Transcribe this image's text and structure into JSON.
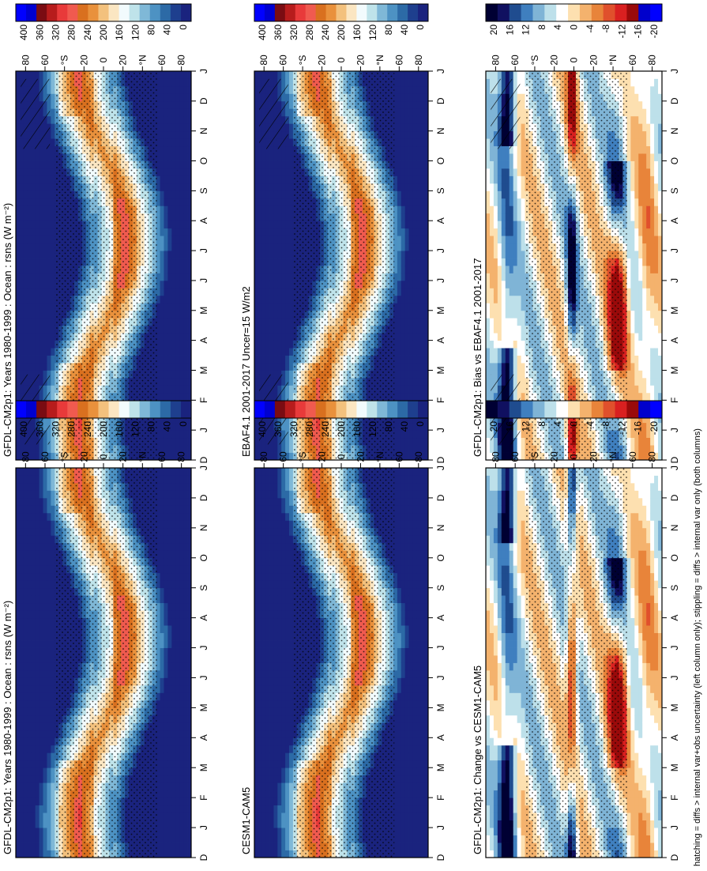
{
  "figure": {
    "footnote": "hatching = diffs > internal var+obs uncertainty (left column only); stippling = diffs > internal var only (both columns)"
  },
  "chart_data": [
    {
      "type": "heatmap",
      "id": "p1",
      "title": "GFDL-CM2p1: Years 1980-1999 : Ocean : rsns (W m⁻²)",
      "months": [
        "D",
        "J",
        "F",
        "M",
        "A",
        "M",
        "J",
        "J",
        "A",
        "S",
        "O",
        "N",
        "D",
        "J"
      ],
      "lat_ticks": [
        "80",
        "60",
        "°N",
        "20",
        "0",
        "20",
        "°S",
        "60",
        "80"
      ],
      "colorbar": {
        "labels": [
          "400",
          "360",
          "320",
          "280",
          "240",
          "200",
          "160",
          "120",
          "80",
          "40",
          "0"
        ],
        "range": [
          0,
          400
        ],
        "scheme": "absolute"
      },
      "annotations": [
        "stippling",
        "hatching"
      ]
    },
    {
      "type": "heatmap",
      "id": "p2",
      "title": "GFDL-CM2p1: Years 1980-1999 : Ocean : rsns (W m⁻²)",
      "months": [
        "D",
        "J",
        "F",
        "M",
        "A",
        "M",
        "J",
        "J",
        "A",
        "S",
        "O",
        "N",
        "D",
        "J"
      ],
      "lat_ticks": [
        "80",
        "60",
        "°N",
        "20",
        "0",
        "20",
        "°S",
        "60",
        "80"
      ],
      "colorbar": {
        "labels": [
          "400",
          "360",
          "320",
          "280",
          "240",
          "200",
          "160",
          "120",
          "80",
          "40",
          "0"
        ],
        "range": [
          0,
          400
        ],
        "scheme": "absolute"
      },
      "annotations": [
        "stippling"
      ]
    },
    {
      "type": "heatmap",
      "id": "p3",
      "title": "EBAF4.1 2001-2017 Uncer=15 W/m2",
      "months": [
        "D",
        "J",
        "F",
        "M",
        "A",
        "M",
        "J",
        "J",
        "A",
        "S",
        "O",
        "N",
        "D",
        "J"
      ],
      "lat_ticks": [
        "80",
        "60",
        "°N",
        "20",
        "0",
        "20",
        "°S",
        "60",
        "80"
      ],
      "colorbar": {
        "labels": [
          "400",
          "360",
          "320",
          "280",
          "240",
          "200",
          "160",
          "120",
          "80",
          "40",
          "0"
        ],
        "range": [
          0,
          400
        ],
        "scheme": "absolute"
      },
      "annotations": [
        "stippling",
        "hatching"
      ]
    },
    {
      "type": "heatmap",
      "id": "p4",
      "title": "CESM1-CAM5",
      "months": [
        "D",
        "J",
        "F",
        "M",
        "A",
        "M",
        "J",
        "J",
        "A",
        "S",
        "O",
        "N",
        "D",
        "J"
      ],
      "lat_ticks": [
        "80",
        "60",
        "°N",
        "20",
        "0",
        "20",
        "°S",
        "60",
        "80"
      ],
      "colorbar": {
        "labels": [
          "400",
          "360",
          "320",
          "280",
          "240",
          "200",
          "160",
          "120",
          "80",
          "40",
          "0"
        ],
        "range": [
          0,
          400
        ],
        "scheme": "absolute"
      },
      "annotations": [
        "stippling"
      ]
    },
    {
      "type": "heatmap",
      "id": "p5",
      "title": "GFDL-CM2p1: Bias vs EBAF4.1 2001-2017",
      "months": [
        "D",
        "J",
        "F",
        "M",
        "A",
        "M",
        "J",
        "J",
        "A",
        "S",
        "O",
        "N",
        "D",
        "J"
      ],
      "lat_ticks": [
        "80",
        "60",
        "°N",
        "20",
        "0",
        "20",
        "°S",
        "60",
        "80"
      ],
      "colorbar": {
        "labels": [
          "20",
          "16",
          "12",
          "8",
          "4",
          "0",
          "-4",
          "-8",
          "-12",
          "-16",
          "-20"
        ],
        "range": [
          -20,
          20
        ],
        "scheme": "difference"
      },
      "annotations": [
        "stippling",
        "hatching"
      ]
    },
    {
      "type": "heatmap",
      "id": "p6",
      "title": "GFDL-CM2p1: Change vs CESM1-CAM5",
      "months": [
        "D",
        "J",
        "F",
        "M",
        "A",
        "M",
        "J",
        "J",
        "A",
        "S",
        "O",
        "N",
        "D",
        "J"
      ],
      "lat_ticks": [
        "80",
        "60",
        "°N",
        "20",
        "0",
        "20",
        "°S",
        "60",
        "80"
      ],
      "colorbar": {
        "labels": [
          "20",
          "16",
          "12",
          "8",
          "4",
          "0",
          "-4",
          "-8",
          "-12",
          "-16",
          "-20"
        ],
        "range": [
          -20,
          20
        ],
        "scheme": "difference"
      },
      "annotations": [
        "stippling"
      ]
    }
  ]
}
